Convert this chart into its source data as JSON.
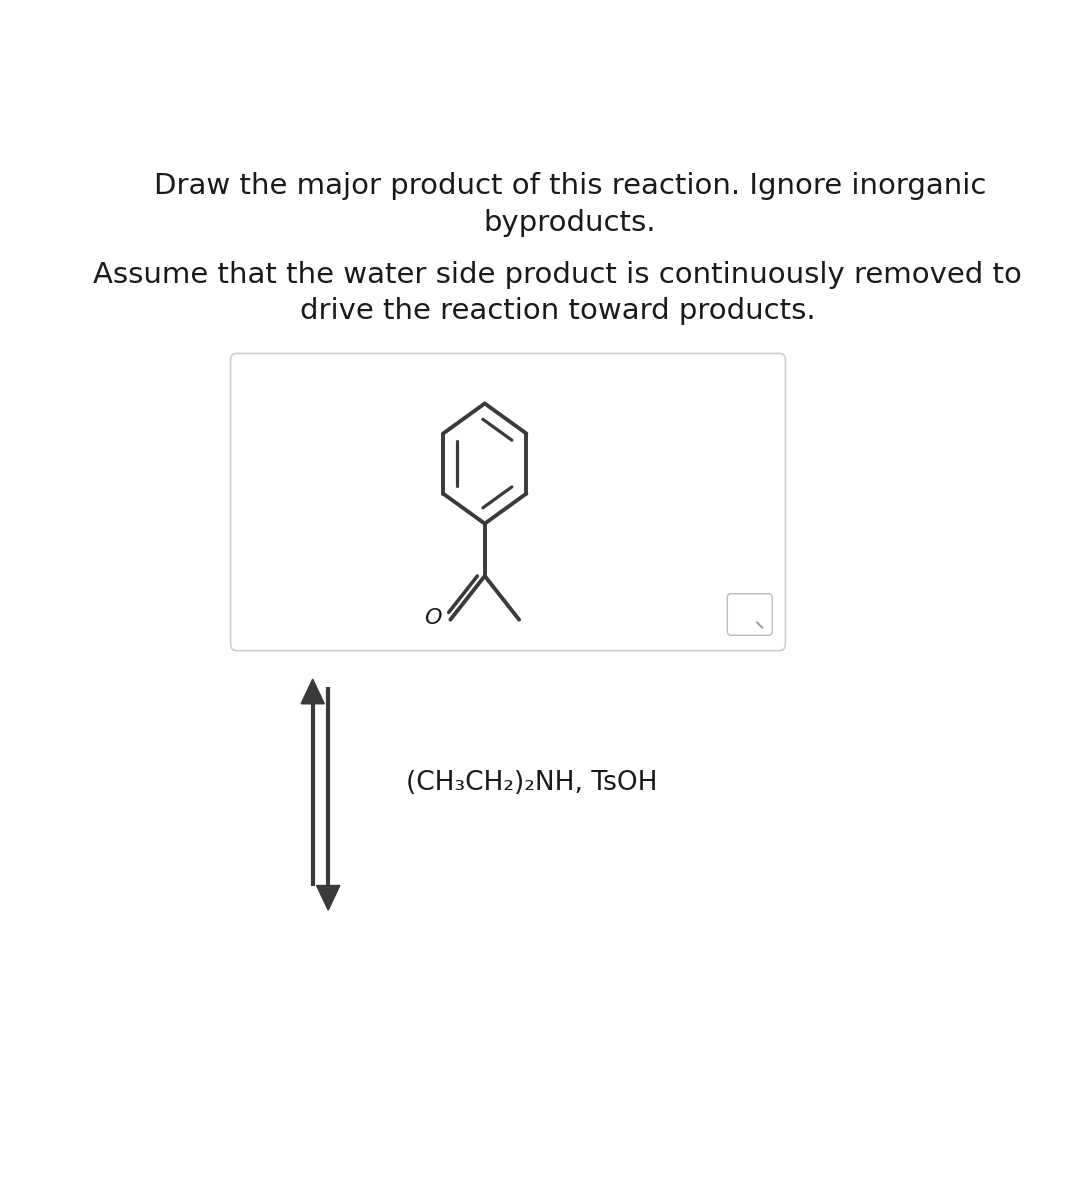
{
  "title_line1": "Draw the major product of this reaction. Ignore inorganic",
  "title_line2": "byproducts.",
  "subtitle_line1": "Assume that the water side product is continuously removed to",
  "subtitle_line2": "drive the reaction toward products.",
  "reagent_text": "(CH₃CH₂)₂NH, TsOH",
  "bg_color": "#ffffff",
  "text_color": "#1a1a1a",
  "line_color": "#3a3a3a",
  "box_color": "#cccccc",
  "title_fontsize": 21,
  "subtitle_fontsize": 21,
  "reagent_fontsize": 19,
  "fig_width": 10.88,
  "fig_height": 12.0
}
